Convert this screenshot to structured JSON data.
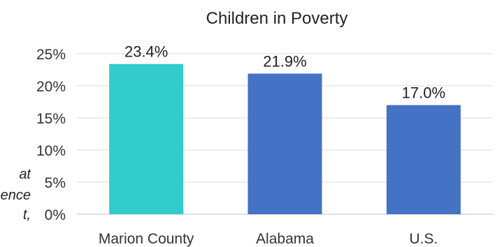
{
  "side_note": {
    "lines": [
      "at",
      "ence",
      "t,"
    ]
  },
  "chart_data": {
    "type": "bar",
    "title": "Children in Poverty",
    "categories": [
      "Marion County",
      "Alabama",
      "U.S."
    ],
    "values": [
      23.4,
      21.9,
      17.0
    ],
    "data_labels": [
      "23.4%",
      "21.9%",
      "17.0%"
    ],
    "colors": [
      "#33CCCC",
      "#4472C4",
      "#4472C4"
    ],
    "ylim": [
      0,
      25
    ],
    "yticks": [
      0,
      5,
      10,
      15,
      20,
      25
    ],
    "ytick_labels": [
      "0%",
      "5%",
      "10%",
      "15%",
      "20%",
      "25%"
    ],
    "grid": true,
    "xlabel": "",
    "ylabel": ""
  }
}
